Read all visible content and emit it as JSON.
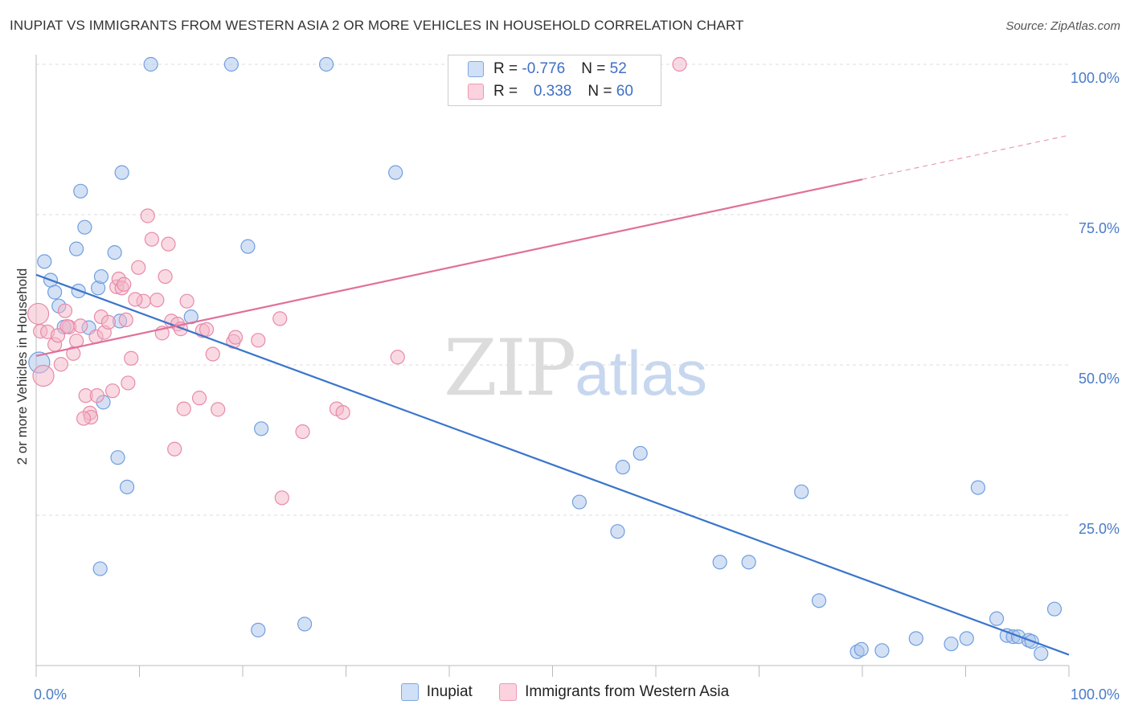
{
  "title": "INUPIAT VS IMMIGRANTS FROM WESTERN ASIA 2 OR MORE VEHICLES IN HOUSEHOLD CORRELATION CHART",
  "source": "Source: ZipAtlas.com",
  "watermark": {
    "zip": "ZIP",
    "atlas": "atlas"
  },
  "legend": {
    "rows": [
      {
        "r_label": "R = ",
        "r_value": "-0.776",
        "n_label": "N = ",
        "n_value": "52",
        "color": "#a9c4ec"
      },
      {
        "r_label": "R = ",
        "r_value": "0.338",
        "n_label": "N = ",
        "n_value": "60",
        "color": "#f4b5c8"
      }
    ]
  },
  "bottom_legend": [
    {
      "label": "Inupiat",
      "color": "#a9c4ec"
    },
    {
      "label": "Immigrants from Western Asia",
      "color": "#f4b5c8"
    }
  ],
  "chart_data": {
    "type": "scatter",
    "title": "INUPIAT VS IMMIGRANTS FROM WESTERN ASIA 2 OR MORE VEHICLES IN HOUSEHOLD CORRELATION CHART",
    "xlabel": "",
    "ylabel": "2 or more Vehicles in Household",
    "xlim": [
      0,
      100
    ],
    "ylim": [
      0,
      100
    ],
    "x_ticks": [
      "0.0%",
      "100.0%"
    ],
    "y_ticks": [
      {
        "value": 25,
        "label": "25.0%"
      },
      {
        "value": 50,
        "label": "50.0%"
      },
      {
        "value": 75,
        "label": "75.0%"
      },
      {
        "value": 100,
        "label": "100.0%"
      }
    ],
    "grid": true,
    "legend_position": "top-center",
    "series": [
      {
        "name": "Inupiat",
        "color": "#6f9fe0",
        "fill": "#a9c4ec",
        "trend": {
          "x": [
            0,
            100
          ],
          "y": [
            65.0,
            1.8
          ],
          "color": "#3a75cc",
          "dashed_from": null
        },
        "points": [
          [
            0.3,
            50.4
          ],
          [
            0.8,
            67.2
          ],
          [
            1.4,
            64.1
          ],
          [
            1.8,
            62.1
          ],
          [
            2.2,
            59.8
          ],
          [
            2.7,
            56.3
          ],
          [
            4.1,
            62.3
          ],
          [
            3.9,
            69.3
          ],
          [
            4.3,
            78.9
          ],
          [
            4.7,
            72.9
          ],
          [
            5.1,
            56.2
          ],
          [
            6.0,
            62.8
          ],
          [
            6.3,
            64.7
          ],
          [
            7.6,
            68.7
          ],
          [
            8.1,
            57.3
          ],
          [
            8.3,
            82.0
          ],
          [
            6.5,
            43.8
          ],
          [
            7.9,
            34.6
          ],
          [
            8.8,
            29.7
          ],
          [
            6.2,
            16.1
          ],
          [
            11.1,
            100.0
          ],
          [
            18.9,
            100.0
          ],
          [
            28.1,
            100.0
          ],
          [
            15.0,
            58.0
          ],
          [
            20.5,
            69.7
          ],
          [
            21.8,
            39.4
          ],
          [
            21.5,
            5.9
          ],
          [
            26.0,
            6.9
          ],
          [
            34.8,
            82.0
          ],
          [
            52.6,
            27.2
          ],
          [
            56.3,
            22.3
          ],
          [
            56.8,
            33.0
          ],
          [
            58.5,
            35.3
          ],
          [
            66.2,
            17.2
          ],
          [
            69.0,
            17.2
          ],
          [
            74.1,
            28.9
          ],
          [
            75.8,
            10.8
          ],
          [
            79.5,
            2.3
          ],
          [
            79.9,
            2.7
          ],
          [
            81.9,
            2.5
          ],
          [
            85.2,
            4.5
          ],
          [
            88.6,
            3.6
          ],
          [
            90.1,
            4.5
          ],
          [
            91.2,
            29.6
          ],
          [
            93.0,
            7.8
          ],
          [
            94.0,
            5.0
          ],
          [
            94.6,
            4.8
          ],
          [
            95.1,
            4.8
          ],
          [
            96.1,
            4.2
          ],
          [
            96.4,
            4.0
          ],
          [
            97.3,
            2.0
          ],
          [
            98.6,
            9.4
          ]
        ]
      },
      {
        "name": "Immigrants from Western Asia",
        "color": "#e88aaa",
        "fill": "#f4b5c8",
        "trend": {
          "x": [
            0,
            100
          ],
          "y": [
            51.5,
            88.2
          ],
          "color": "#e0709a",
          "dashed_from": 80.0
        },
        "points": [
          [
            0.2,
            58.5
          ],
          [
            0.4,
            55.6
          ],
          [
            0.7,
            48.2
          ],
          [
            1.1,
            55.5
          ],
          [
            1.8,
            53.4
          ],
          [
            2.1,
            54.9
          ],
          [
            2.4,
            50.1
          ],
          [
            2.8,
            59.0
          ],
          [
            3.2,
            56.3
          ],
          [
            3.6,
            51.9
          ],
          [
            3.9,
            54.0
          ],
          [
            4.3,
            56.5
          ],
          [
            4.8,
            44.9
          ],
          [
            5.2,
            42.0
          ],
          [
            5.3,
            41.3
          ],
          [
            5.8,
            54.7
          ],
          [
            5.9,
            44.9
          ],
          [
            6.3,
            58.0
          ],
          [
            6.6,
            55.4
          ],
          [
            7.0,
            57.1
          ],
          [
            7.4,
            45.7
          ],
          [
            7.8,
            63.0
          ],
          [
            8.0,
            64.3
          ],
          [
            8.3,
            62.8
          ],
          [
            8.5,
            63.4
          ],
          [
            8.9,
            47.0
          ],
          [
            9.2,
            51.1
          ],
          [
            9.9,
            66.2
          ],
          [
            10.4,
            60.6
          ],
          [
            10.8,
            74.8
          ],
          [
            11.2,
            70.9
          ],
          [
            11.7,
            60.8
          ],
          [
            12.2,
            55.3
          ],
          [
            12.5,
            64.7
          ],
          [
            12.8,
            70.1
          ],
          [
            13.1,
            57.3
          ],
          [
            13.4,
            36.0
          ],
          [
            13.7,
            56.8
          ],
          [
            14.0,
            56.0
          ],
          [
            14.3,
            42.7
          ],
          [
            14.6,
            60.6
          ],
          [
            15.8,
            44.5
          ],
          [
            16.1,
            55.7
          ],
          [
            17.1,
            51.8
          ],
          [
            17.6,
            42.6
          ],
          [
            19.1,
            53.9
          ],
          [
            19.3,
            54.6
          ],
          [
            21.5,
            54.1
          ],
          [
            23.6,
            57.7
          ],
          [
            23.8,
            27.9
          ],
          [
            25.8,
            38.9
          ],
          [
            29.1,
            42.7
          ],
          [
            29.7,
            42.1
          ],
          [
            35.0,
            51.3
          ],
          [
            62.3,
            100.0
          ],
          [
            3.0,
            56.4
          ],
          [
            4.6,
            41.1
          ],
          [
            9.6,
            60.9
          ],
          [
            16.5,
            55.9
          ],
          [
            8.7,
            57.5
          ]
        ]
      }
    ]
  }
}
